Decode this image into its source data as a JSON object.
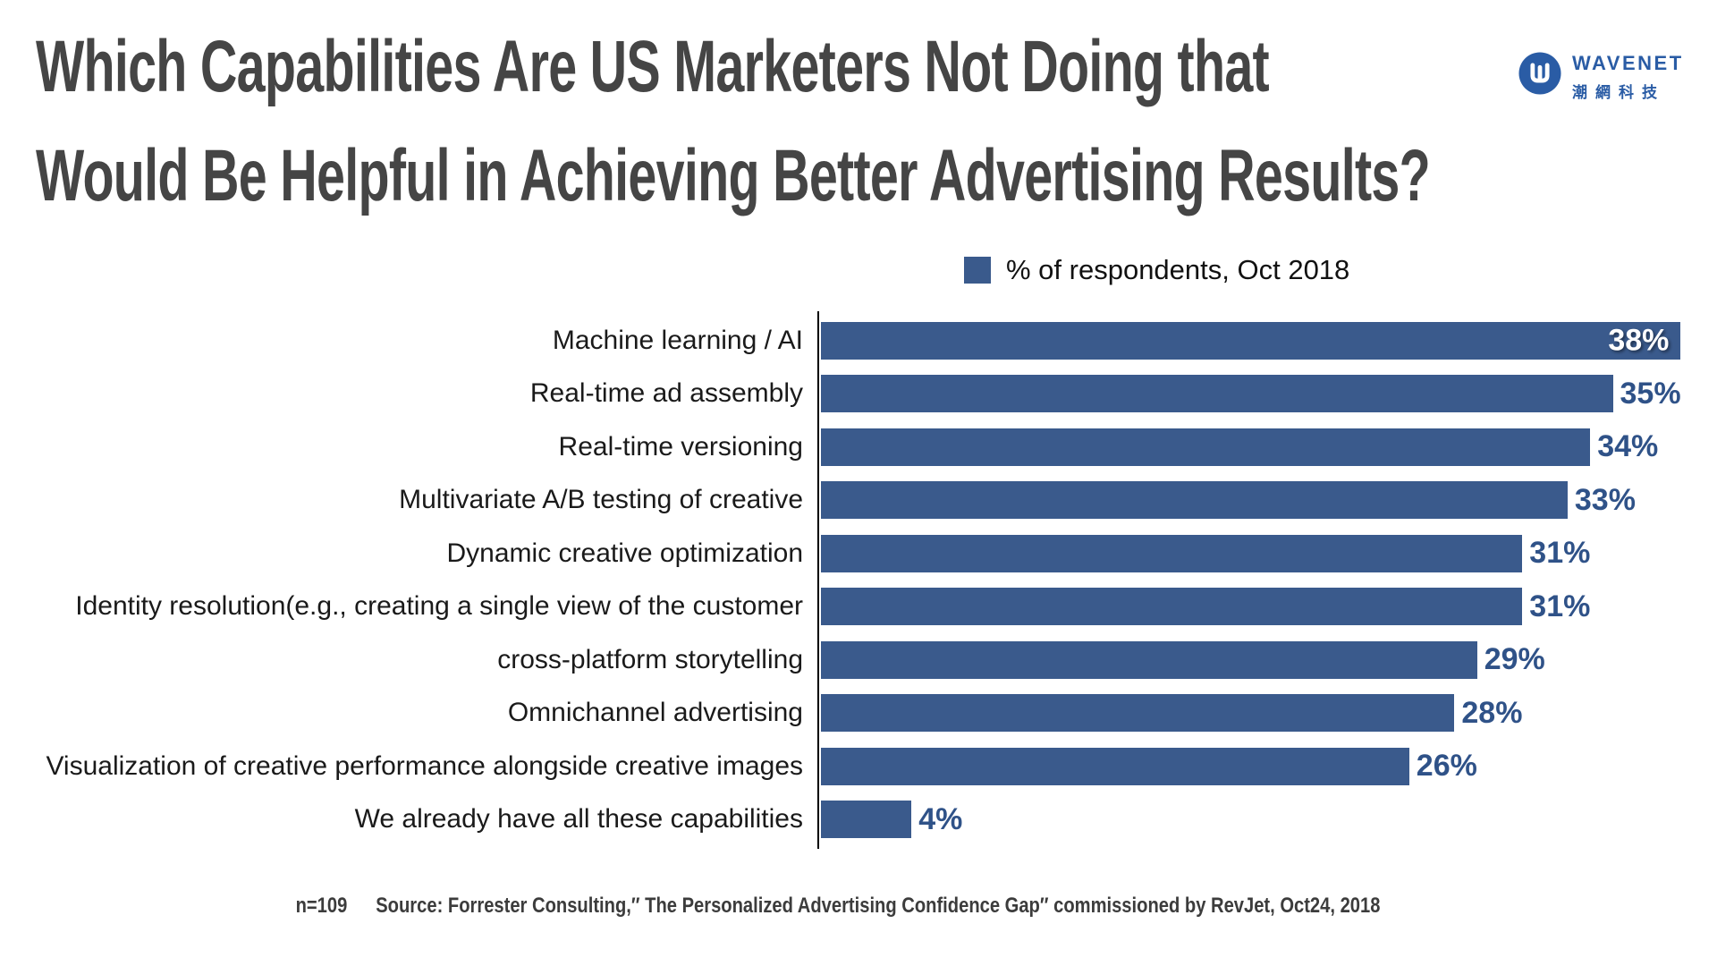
{
  "title": {
    "line1": "Which Capabilities Are US Marketers Not Doing that",
    "line2": "Would Be Helpful in Achieving Better Advertising Results?"
  },
  "logo": {
    "brand": "WAVENET",
    "brand_zh": "潮網科技",
    "color": "#2A5CA5"
  },
  "legend": {
    "label": "% of respondents, Oct 2018",
    "swatch_color": "#3A5A8C"
  },
  "chart_data": {
    "type": "bar",
    "orientation": "horizontal",
    "title": "Which Capabilities Are US Marketers Not Doing that Would Be Helpful in Achieving Better Advertising Results?",
    "legend": "% of respondents, Oct 2018",
    "categories": [
      "Machine learning / AI",
      "Real-time ad assembly",
      "Real-time versioning",
      "Multivariate A/B testing of creative",
      "Dynamic creative optimization",
      "Identity resolution(e.g., creating a single view of the customer",
      "cross-platform storytelling",
      "Omnichannel advertising",
      "Visualization of creative performance alongside creative images",
      "We already have all these capabilities"
    ],
    "values": [
      38,
      35,
      34,
      33,
      31,
      31,
      29,
      28,
      26,
      4
    ],
    "value_suffix": "%",
    "xlim": [
      0,
      40
    ],
    "grid": false,
    "bar_color": "#3A5A8C",
    "value_label_color": "#2F5288",
    "max_value_label_inside": true
  },
  "footer": {
    "sample": "n=109",
    "source": "Source: Forrester Consulting,″ The Personalized Advertising Confidence Gap″ commissioned by RevJet, Oct24, 2018"
  }
}
